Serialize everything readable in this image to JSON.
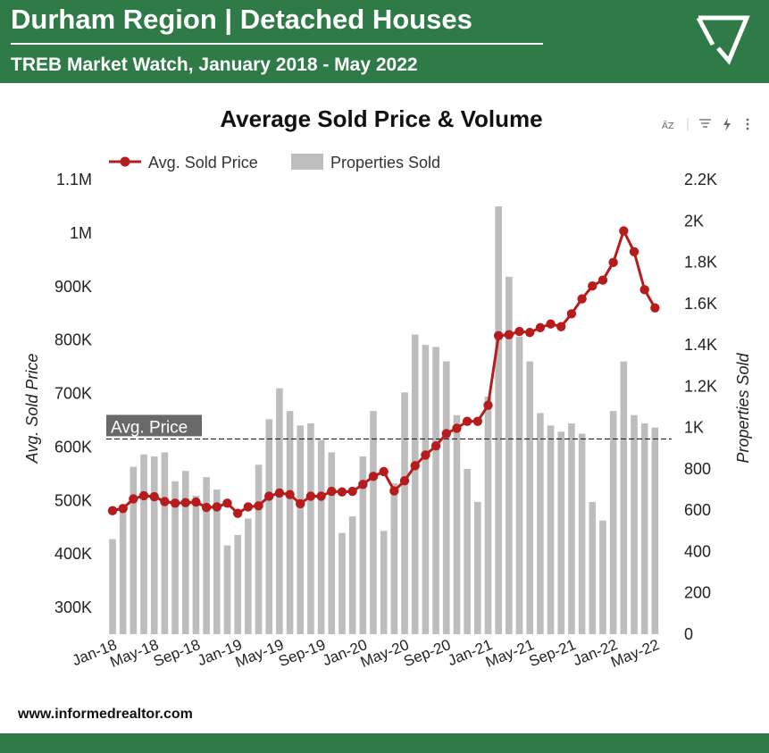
{
  "header": {
    "title": "Durham Region | Detached Houses",
    "subtitle": "TREB Market Watch, January 2018 - May 2022",
    "logo_icon": "check-triangle-logo-icon"
  },
  "footer": {
    "website": "www.informedrealtor.com"
  },
  "colors": {
    "banner": "#2e7b47",
    "line": "#b71c1c",
    "bars": "#bdbdbd",
    "text": "#222222"
  },
  "toolbar": {
    "icons": [
      "sort-az-icon",
      "filter-icon",
      "lightning-icon",
      "more-vert-icon"
    ],
    "sort_label": "A̋Z"
  },
  "chart_data": {
    "type": "bar",
    "title": "Average Sold Price & Volume",
    "ylabel": "Avg. Sold Price",
    "y2label": "Properties Sold",
    "ylim": [
      250000,
      1100000
    ],
    "y2lim": [
      0,
      2200
    ],
    "yticks": [
      "300K",
      "400K",
      "500K",
      "600K",
      "700K",
      "800K",
      "900K",
      "1M",
      "1.1M"
    ],
    "y2ticks": [
      "0",
      "200",
      "400",
      "600",
      "800",
      "1K",
      "1.2K",
      "1.4K",
      "1.6K",
      "1.8K",
      "2K",
      "2.2K"
    ],
    "xticks": [
      "Jan-18",
      "May-18",
      "Sep-18",
      "Jan-19",
      "May-19",
      "Sep-19",
      "Jan-20",
      "May-20",
      "Sep-20",
      "Jan-21",
      "May-21",
      "Sep-21",
      "Jan-22",
      "May-22"
    ],
    "legend_position": "top-left",
    "grid": false,
    "reference_line": {
      "label": "Avg. Price",
      "value": 615000
    },
    "categories": [
      "Jan-18",
      "Feb-18",
      "Mar-18",
      "Apr-18",
      "May-18",
      "Jun-18",
      "Jul-18",
      "Aug-18",
      "Sep-18",
      "Oct-18",
      "Nov-18",
      "Dec-18",
      "Jan-19",
      "Feb-19",
      "Mar-19",
      "Apr-19",
      "May-19",
      "Jun-19",
      "Jul-19",
      "Aug-19",
      "Sep-19",
      "Oct-19",
      "Nov-19",
      "Dec-19",
      "Jan-20",
      "Feb-20",
      "Mar-20",
      "Apr-20",
      "May-20",
      "Jun-20",
      "Jul-20",
      "Aug-20",
      "Sep-20",
      "Oct-20",
      "Nov-20",
      "Dec-20",
      "Jan-21",
      "Feb-21",
      "Mar-21",
      "Apr-21",
      "May-21",
      "Jun-21",
      "Jul-21",
      "Aug-21",
      "Sep-21",
      "Oct-21",
      "Nov-21",
      "Dec-21",
      "Jan-22",
      "Feb-22",
      "Mar-22",
      "Apr-22",
      "May-22"
    ],
    "series": [
      {
        "name": "Avg. Sold Price",
        "type": "line",
        "axis": "left",
        "values": [
          481000,
          485000,
          503000,
          509000,
          507000,
          498000,
          495000,
          496000,
          497000,
          487000,
          488000,
          495000,
          476000,
          488000,
          490000,
          508000,
          514000,
          511000,
          494000,
          508000,
          508000,
          517000,
          516000,
          517000,
          530000,
          545000,
          554000,
          518000,
          537000,
          565000,
          585000,
          602000,
          625000,
          635000,
          648000,
          648000,
          678000,
          808000,
          810000,
          816000,
          814000,
          823000,
          830000,
          825000,
          849000,
          877000,
          901000,
          912000,
          945000,
          1004000,
          965000,
          894000,
          860000
        ]
      },
      {
        "name": "Properties Sold",
        "type": "bar",
        "axis": "right",
        "values": [
          460,
          610,
          810,
          870,
          860,
          880,
          740,
          790,
          670,
          760,
          700,
          430,
          480,
          560,
          820,
          1040,
          1190,
          1080,
          1010,
          1020,
          940,
          880,
          490,
          570,
          860,
          1080,
          500,
          730,
          1170,
          1450,
          1400,
          1390,
          1320,
          1060,
          800,
          640,
          1150,
          2070,
          1730,
          1440,
          1320,
          1070,
          1010,
          980,
          1020,
          970,
          640,
          550,
          1080,
          1320,
          1060,
          1020,
          1000
        ]
      }
    ]
  }
}
